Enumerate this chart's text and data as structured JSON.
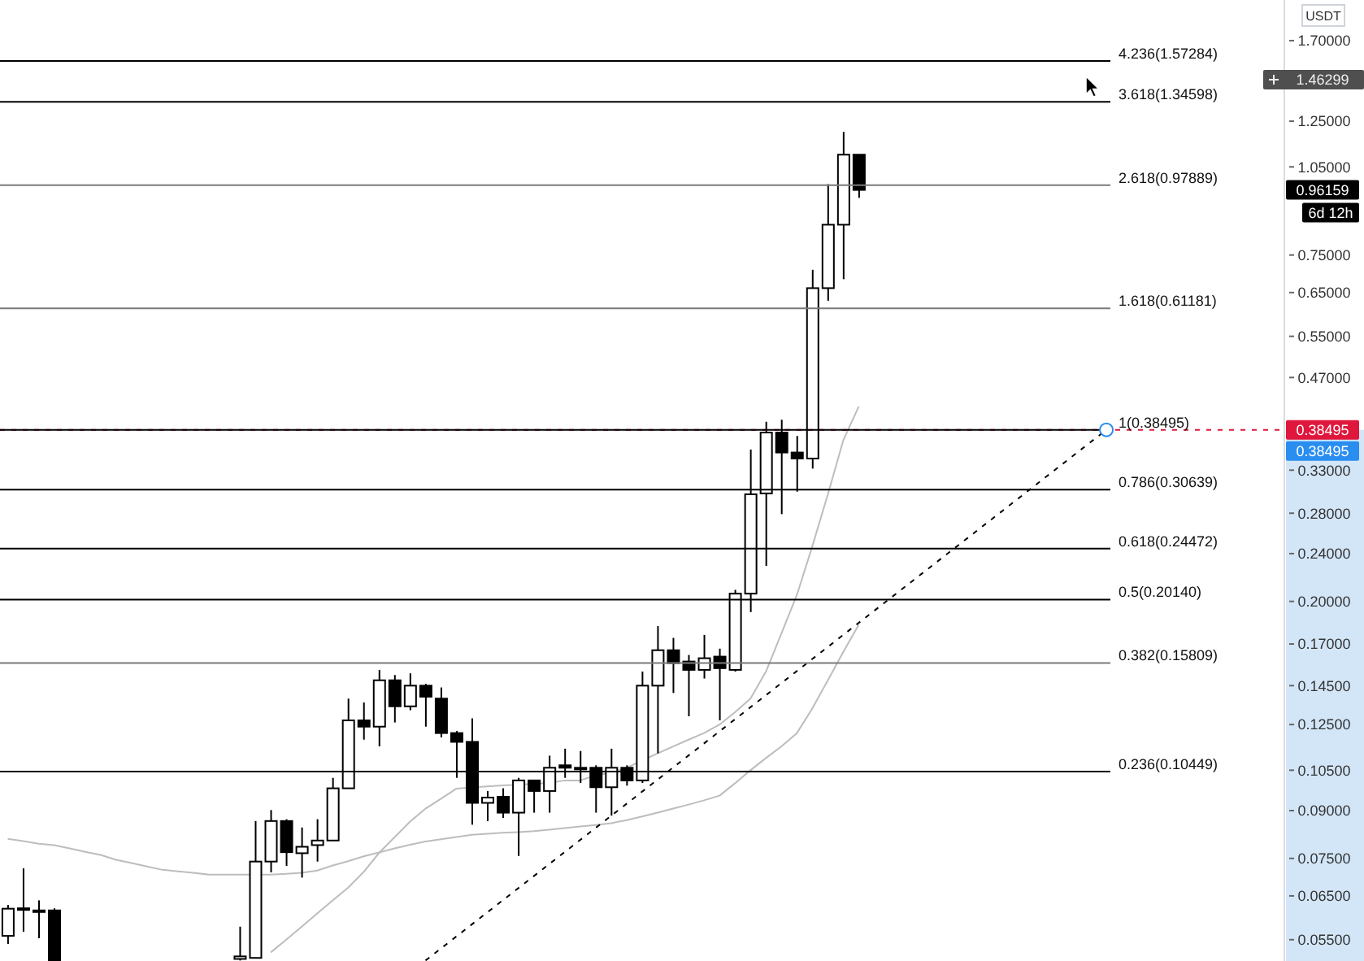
{
  "chart_data": {
    "type": "candlestick",
    "ylabel": "USDT",
    "categories": [
      null,
      null,
      null,
      null,
      null,
      null,
      null,
      null,
      null,
      null,
      null,
      null,
      null,
      null,
      null,
      null,
      null,
      null,
      null,
      null,
      null,
      null,
      null,
      null,
      null,
      null,
      null,
      null,
      null,
      null,
      null,
      null,
      null,
      null,
      null,
      null,
      null,
      null,
      null,
      null,
      null,
      null,
      null,
      null,
      null,
      null,
      null,
      null,
      null,
      null,
      null,
      null,
      null,
      null,
      null,
      null,
      null,
      null,
      null,
      null,
      null,
      null,
      null,
      null,
      null,
      null,
      null,
      null,
      null,
      null,
      null,
      null,
      null,
      null,
      null,
      null,
      null,
      null,
      null,
      null,
      null,
      null,
      null
    ],
    "ohlc": [
      [
        0.0558,
        0.0628,
        0.0541,
        0.0619
      ],
      [
        0.0618,
        0.0722,
        0.0567,
        0.062
      ],
      [
        0.0615,
        0.0639,
        0.0553,
        0.0615
      ],
      [
        0.0615,
        0.062,
        0.0508,
        0.0508
      ],
      null,
      null,
      null,
      null,
      null,
      null,
      null,
      null,
      null,
      null,
      null,
      [
        0.0511,
        0.0578,
        0.0508,
        0.0516
      ],
      [
        0.0513,
        0.0865,
        0.0512,
        0.0741
      ],
      [
        0.0741,
        0.0902,
        0.0711,
        0.0865
      ],
      [
        0.0865,
        0.0871,
        0.0729,
        0.0768
      ],
      [
        0.0765,
        0.0844,
        0.0697,
        0.0784
      ],
      [
        0.0789,
        0.0871,
        0.0741,
        0.0803
      ],
      [
        0.0803,
        0.102,
        0.0802,
        0.098
      ],
      [
        0.098,
        0.138,
        0.0979,
        0.127
      ],
      [
        0.127,
        0.136,
        0.118,
        0.124
      ],
      [
        0.124,
        0.154,
        0.115,
        0.148
      ],
      [
        0.148,
        0.151,
        0.126,
        0.134
      ],
      [
        0.134,
        0.152,
        0.132,
        0.145
      ],
      [
        0.145,
        0.146,
        0.124,
        0.139
      ],
      [
        0.138,
        0.144,
        0.119,
        0.121
      ],
      [
        0.121,
        0.122,
        0.102,
        0.117
      ],
      [
        0.117,
        0.128,
        0.0853,
        0.0927
      ],
      [
        0.0927,
        0.097,
        0.0865,
        0.0946
      ],
      [
        0.0949,
        0.098,
        0.0875,
        0.0893
      ],
      [
        0.0893,
        0.102,
        0.0757,
        0.101
      ],
      [
        0.101,
        0.101,
        0.0893,
        0.097
      ],
      [
        0.097,
        0.111,
        0.0893,
        0.106
      ],
      [
        0.107,
        0.114,
        0.102,
        0.106
      ],
      [
        0.106,
        0.113,
        0.1,
        0.106
      ],
      [
        0.106,
        0.107,
        0.0893,
        0.0984
      ],
      [
        0.0984,
        0.114,
        0.0883,
        0.106
      ],
      [
        0.106,
        0.107,
        0.099,
        0.101
      ],
      [
        0.101,
        0.153,
        0.1,
        0.145
      ],
      [
        0.145,
        0.182,
        0.112,
        0.166
      ],
      [
        0.166,
        0.174,
        0.141,
        0.158
      ],
      [
        0.159,
        0.163,
        0.129,
        0.154
      ],
      [
        0.154,
        0.176,
        0.149,
        0.161
      ],
      [
        0.162,
        0.167,
        0.127,
        0.155
      ],
      [
        0.154,
        0.209,
        0.153,
        0.206
      ],
      [
        0.206,
        0.357,
        0.192,
        0.301
      ],
      [
        0.302,
        0.397,
        0.229,
        0.381
      ],
      [
        0.381,
        0.4,
        0.279,
        0.353
      ],
      [
        0.353,
        0.376,
        0.304,
        0.345
      ],
      [
        0.345,
        0.709,
        0.332,
        0.661
      ],
      [
        0.661,
        0.983,
        0.63,
        0.842
      ],
      [
        0.842,
        1.2,
        0.684,
        1.1
      ],
      [
        1.1,
        1.1,
        0.933,
        0.96159
      ],
      null,
      null,
      null,
      null,
      null,
      null,
      null,
      null,
      null,
      null,
      null,
      null,
      null,
      null,
      null,
      null,
      null,
      null,
      null,
      null,
      null,
      null,
      null,
      null,
      null,
      null,
      null
    ],
    "series": [
      {
        "type": "line",
        "color": "#bdbdbd",
        "values": [
          null,
          null,
          null,
          null,
          null,
          null,
          null,
          null,
          null,
          null,
          null,
          null,
          null,
          null,
          null,
          null,
          null,
          0.0524,
          0.055,
          0.0578,
          0.0608,
          0.0639,
          0.0671,
          0.0712,
          0.0766,
          0.0813,
          0.0863,
          0.0907,
          0.0942,
          0.0979,
          0.0983,
          0.0987,
          0.0991,
          0.0993,
          0.0997,
          0.1,
          0.101,
          0.101,
          0.103,
          0.104,
          0.106,
          0.109,
          0.112,
          0.115,
          0.118,
          0.121,
          0.125,
          0.131,
          0.138,
          0.153,
          0.177,
          0.205,
          0.247,
          0.301,
          0.37,
          0.421,
          null,
          null,
          null,
          null,
          null,
          null,
          null,
          null,
          null,
          null,
          null,
          null,
          null,
          null,
          null,
          null,
          null,
          null,
          null,
          null,
          null,
          null,
          null,
          null,
          null,
          null,
          null
        ]
      },
      {
        "type": "line",
        "color": "#bdbdbd",
        "values": [
          0.0808,
          0.0801,
          0.0793,
          0.0789,
          0.0779,
          0.0769,
          0.076,
          0.0746,
          0.0737,
          0.0727,
          0.0718,
          0.0714,
          0.071,
          0.0705,
          0.0705,
          0.0705,
          0.0705,
          0.0705,
          0.0707,
          0.071,
          0.0716,
          0.073,
          0.0742,
          0.0756,
          0.0767,
          0.0779,
          0.079,
          0.08,
          0.0807,
          0.0814,
          0.0821,
          0.0824,
          0.0827,
          0.0829,
          0.0832,
          0.0837,
          0.0842,
          0.0847,
          0.0852,
          0.0858,
          0.0868,
          0.088,
          0.0893,
          0.0907,
          0.0921,
          0.0936,
          0.0953,
          0.0999,
          0.105,
          0.11,
          0.115,
          0.121,
          0.133,
          0.148,
          0.165,
          0.183,
          null,
          null,
          null,
          null,
          null,
          null,
          null,
          null,
          null,
          null,
          null,
          null,
          null,
          null,
          null,
          null,
          null,
          null,
          null,
          null,
          null,
          null,
          null,
          null,
          null,
          null,
          null
        ]
      },
      {
        "type": "line",
        "color": "#000000",
        "line_style": "dashed",
        "values": [
          null,
          null,
          null,
          null,
          null,
          null,
          null,
          null,
          null,
          null,
          null,
          null,
          null,
          null,
          null,
          null,
          null,
          null,
          null,
          null,
          null,
          null,
          null,
          null,
          null,
          null,
          null,
          0.0508,
          null,
          null,
          null,
          null,
          null,
          null,
          null,
          null,
          null,
          null,
          null,
          null,
          null,
          null,
          null,
          null,
          null,
          null,
          null,
          null,
          null,
          null,
          null,
          null,
          null,
          null,
          null,
          null,
          null,
          null,
          null,
          null,
          null,
          null,
          null,
          null,
          null,
          null,
          null,
          null,
          null,
          null,
          null,
          0.38495,
          null,
          null,
          null,
          null,
          null,
          null,
          null,
          null,
          null,
          null,
          null
        ]
      }
    ],
    "ylim": [
      0.0507,
      1.985
    ],
    "log": true,
    "yticks": [
      {
        "value": 1.7,
        "label": "1.70000"
      },
      {
        "value": 1.25,
        "label": "1.25000"
      },
      {
        "value": 1.05,
        "label": "1.05000"
      },
      {
        "value": 0.75,
        "label": "0.75000"
      },
      {
        "value": 0.65,
        "label": "0.65000"
      },
      {
        "value": 0.55,
        "label": "0.55000"
      },
      {
        "value": 0.47,
        "label": "0.47000"
      },
      {
        "value": 0.33,
        "label": "0.33000"
      },
      {
        "value": 0.28,
        "label": "0.28000"
      },
      {
        "value": 0.24,
        "label": "0.24000"
      },
      {
        "value": 0.2,
        "label": "0.20000"
      },
      {
        "value": 0.17,
        "label": "0.17000"
      },
      {
        "value": 0.145,
        "label": "0.14500"
      },
      {
        "value": 0.125,
        "label": "0.12500"
      },
      {
        "value": 0.105,
        "label": "0.10500"
      },
      {
        "value": 0.09,
        "label": "0.09000"
      },
      {
        "value": 0.075,
        "label": "0.07500"
      },
      {
        "value": 0.065,
        "label": "0.06500"
      },
      {
        "value": 0.055,
        "label": "0.05500"
      }
    ],
    "ref_lines": [
      {
        "axis": "y",
        "value": 0.38495,
        "label": "0.38495",
        "color": "#e0173c",
        "line_style": "dashed"
      },
      {
        "axis": "y",
        "value": 1.57284,
        "label": "4.236(1.57284)",
        "color": "#000000"
      },
      {
        "axis": "y",
        "value": 1.34598,
        "label": "3.618(1.34598)",
        "color": "#000000"
      },
      {
        "axis": "y",
        "value": 0.97889,
        "label": "2.618(0.97889)",
        "color": "#7a7a7a"
      },
      {
        "axis": "y",
        "value": 0.61181,
        "label": "1.618(0.61181)",
        "color": "#7a7a7a"
      },
      {
        "axis": "y",
        "value": 0.38495,
        "label": "1(0.38495)",
        "color": "#000000"
      },
      {
        "axis": "y",
        "value": 0.30639,
        "label": "0.786(0.30639)",
        "color": "#000000"
      },
      {
        "axis": "y",
        "value": 0.24472,
        "label": "0.618(0.24472)",
        "color": "#000000"
      },
      {
        "axis": "y",
        "value": 0.2014,
        "label": "0.5(0.20140)",
        "color": "#000000"
      },
      {
        "axis": "y",
        "value": 0.15809,
        "label": "0.382(0.15809)",
        "color": "#7a7a7a"
      },
      {
        "axis": "y",
        "value": 0.10449,
        "label": "0.236(0.10449)",
        "color": "#000000"
      }
    ],
    "annotations": [
      "1.46299",
      "0.96159",
      "6d 12h",
      "0.38495"
    ]
  }
}
